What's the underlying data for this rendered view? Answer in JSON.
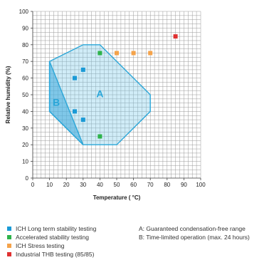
{
  "chart_data": {
    "type": "scatter",
    "xlabel": "Temperature ( °C)",
    "ylabel": "Relative humidity (%)",
    "xlim": [
      0,
      100
    ],
    "ylim": [
      0,
      100
    ],
    "xticks": [
      "0",
      "10",
      "20",
      "30",
      "40",
      "50",
      "60",
      "70",
      "80",
      "90",
      "100"
    ],
    "yticks": [
      "0",
      "10",
      "20",
      "30",
      "40",
      "50",
      "60",
      "70",
      "80",
      "90",
      "100"
    ],
    "grid": true,
    "regions": [
      {
        "label": "A",
        "points": [
          [
            10,
            70
          ],
          [
            30,
            80
          ],
          [
            40,
            80
          ],
          [
            70,
            50
          ],
          [
            70,
            40
          ],
          [
            50,
            20
          ],
          [
            30,
            20
          ],
          [
            10,
            40
          ]
        ],
        "label_pos": [
          40,
          50
        ]
      },
      {
        "label": "B",
        "points": [
          [
            10,
            70
          ],
          [
            10,
            40
          ],
          [
            30,
            20
          ]
        ],
        "label_pos": [
          14,
          45
        ]
      }
    ],
    "series": [
      {
        "name": "ICH Long term stability testing",
        "color": "#1a9ad6",
        "points": [
          [
            25,
            60
          ],
          [
            30,
            65
          ],
          [
            25,
            40
          ],
          [
            30,
            35
          ]
        ]
      },
      {
        "name": "Accelerated stability testing",
        "color": "#2db34a",
        "points": [
          [
            40,
            75
          ],
          [
            40,
            25
          ]
        ]
      },
      {
        "name": "ICH Stress testing",
        "color": "#f5a34a",
        "points": [
          [
            50,
            75
          ],
          [
            60,
            75
          ],
          [
            70,
            75
          ]
        ]
      },
      {
        "name": "Industrial THB testing (85/85)",
        "color": "#e03131",
        "points": [
          [
            85,
            85
          ]
        ]
      }
    ]
  },
  "legend_left": [
    {
      "label": "ICH Long term stability testing",
      "color": "#1a9ad6"
    },
    {
      "label": "Accelerated stability testing",
      "color": "#2db34a"
    },
    {
      "label": "ICH Stress testing",
      "color": "#f5a34a"
    },
    {
      "label": "Industrial THB testing (85/85)",
      "color": "#e03131"
    }
  ],
  "legend_right": [
    {
      "label": "A: Guaranteed condensation-free range"
    },
    {
      "label": "B: Time-limited operation (max. 24 hours)"
    }
  ]
}
